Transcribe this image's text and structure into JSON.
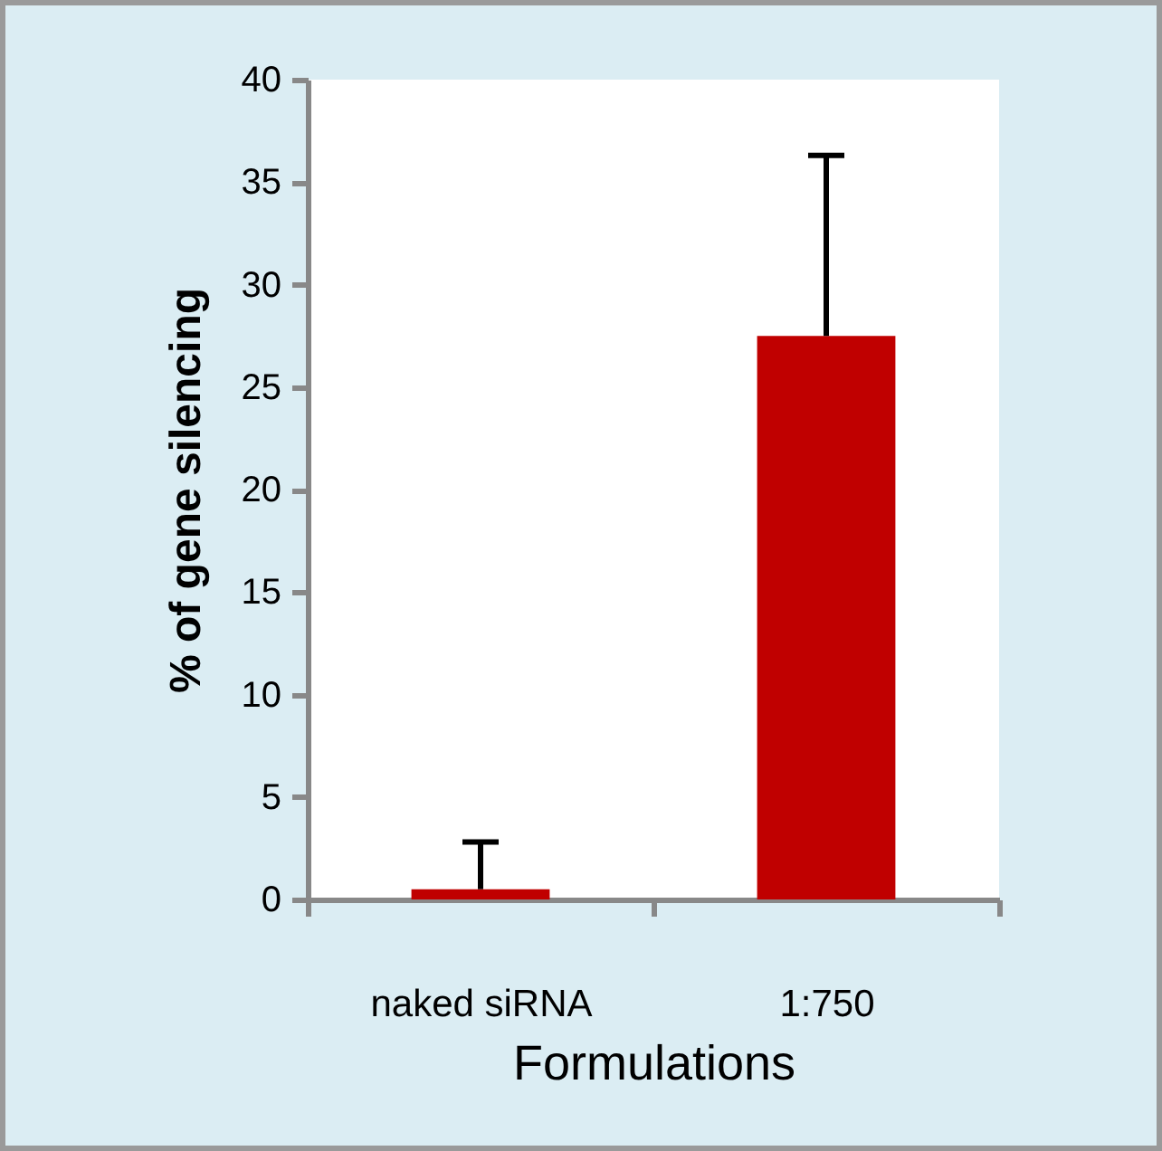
{
  "chart_data": {
    "type": "bar",
    "xlabel": "Formulations",
    "ylabel": "% of gene silencing",
    "categories": [
      "naked siRNA",
      "1:750"
    ],
    "values": [
      0.5,
      27.5
    ],
    "color": "#c00000",
    "errors": [
      [
        0.5,
        2.8
      ],
      [
        27.5,
        36.3
      ]
    ],
    "ylim": [
      0,
      40
    ],
    "yticks": [
      0,
      5,
      10,
      15,
      20,
      25,
      30,
      35,
      40
    ]
  }
}
